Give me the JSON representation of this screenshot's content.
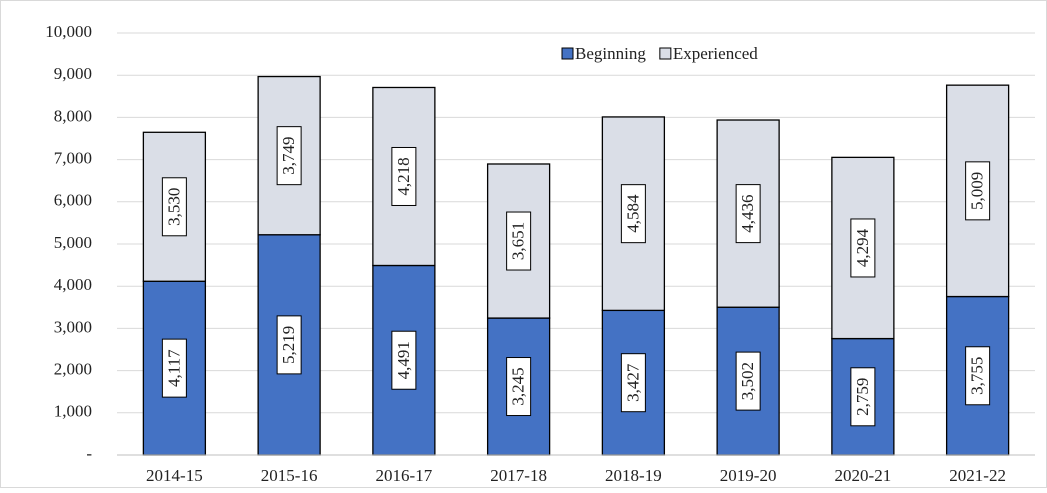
{
  "chart_data": {
    "type": "stacked_bar",
    "categories": [
      "2014-15",
      "2015-16",
      "2016-17",
      "2017-18",
      "2018-19",
      "2019-20",
      "2020-21",
      "2021-22"
    ],
    "series": [
      {
        "name": "Beginning",
        "color": "#4472c4",
        "values": [
          4117,
          5219,
          4491,
          3245,
          3427,
          3502,
          2759,
          3755
        ],
        "value_labels": [
          "4,117",
          "5,219",
          "4,491",
          "3,245",
          "3,427",
          "3,502",
          "2,759",
          "3,755"
        ]
      },
      {
        "name": "Experienced",
        "color": "#dadee7",
        "values": [
          3530,
          3749,
          4218,
          3651,
          4584,
          4436,
          4294,
          5009
        ],
        "value_labels": [
          "3,530",
          "3,749",
          "4,218",
          "3,651",
          "4,584",
          "4,436",
          "4,294",
          "5,009"
        ]
      }
    ],
    "ylim": [
      0,
      10000
    ],
    "yticks": [
      {
        "value": 0,
        "label": "-"
      },
      {
        "value": 1000,
        "label": "1,000"
      },
      {
        "value": 2000,
        "label": "2,000"
      },
      {
        "value": 3000,
        "label": "3,000"
      },
      {
        "value": 4000,
        "label": "4,000"
      },
      {
        "value": 5000,
        "label": "5,000"
      },
      {
        "value": 6000,
        "label": "6,000"
      },
      {
        "value": 7000,
        "label": "7,000"
      },
      {
        "value": 8000,
        "label": "8,000"
      },
      {
        "value": 9000,
        "label": "9,000"
      },
      {
        "value": 10000,
        "label": "10,000"
      }
    ],
    "grid": true,
    "legend": "top"
  }
}
